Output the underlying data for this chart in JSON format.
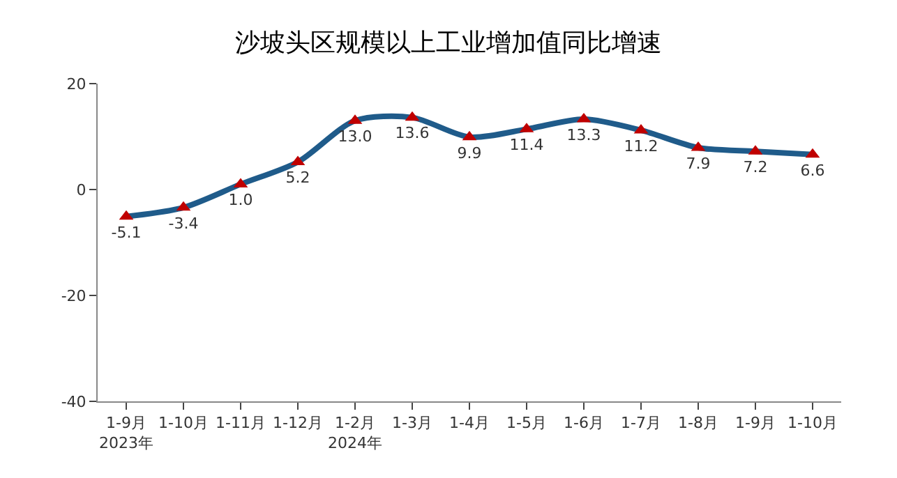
{
  "chart_data": {
    "type": "line",
    "title": "沙坡头区规模以上工业增加值同比增速",
    "categories": [
      "1-9月\n2023年",
      "1-10月",
      "1-11月",
      "1-12月",
      "1-2月\n2024年",
      "1-3月",
      "1-4月",
      "1-5月",
      "1-6月",
      "1-7月",
      "1-8月",
      "1-9月",
      "1-10月"
    ],
    "series": [
      {
        "color": "#1f5b8a",
        "values": [
          -5.1,
          -3.4,
          1.0,
          5.2,
          13.0,
          13.6,
          9.9,
          11.4,
          13.3,
          11.2,
          7.9,
          7.2,
          6.6
        ],
        "value_labels": [
          "-5.1",
          "-3.4",
          "1.0",
          "5.2",
          "13.0",
          "13.6",
          "9.9",
          "11.4",
          "13.3",
          "11.2",
          "7.9",
          "7.2",
          "6.6"
        ],
        "colors": [
          "#c00000",
          "#c00000",
          "#c00000",
          "#c00000",
          "#c00000",
          "#c00000",
          "#c00000",
          "#c00000",
          "#c00000",
          "#c00000",
          "#c00000",
          "#c00000",
          "#c00000"
        ]
      }
    ],
    "ylim": [
      -40,
      20
    ],
    "yticks": [
      -40,
      -20,
      0,
      20
    ],
    "marker": "triangle",
    "line_style": "solid"
  }
}
